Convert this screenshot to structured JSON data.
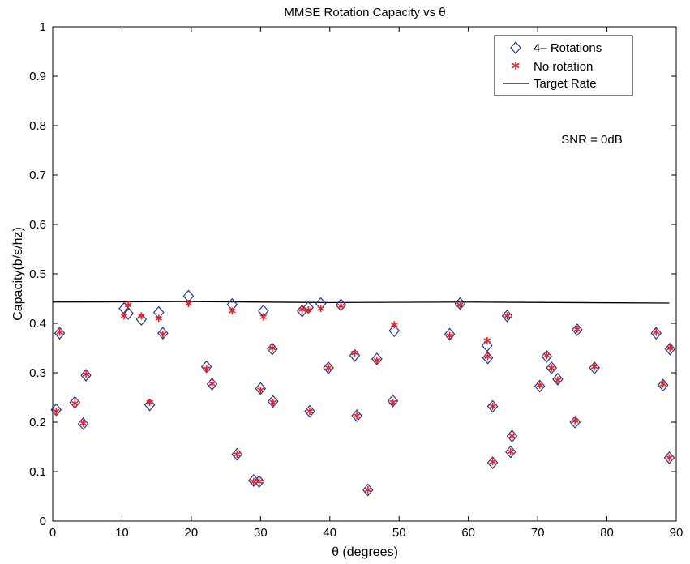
{
  "chart_data": {
    "type": "scatter",
    "title": "MMSE Rotation Capacity vs θ",
    "xlabel": "θ (degrees)",
    "ylabel": "Capacity(b/s/hz)",
    "xlim": [
      0,
      90
    ],
    "ylim": [
      0,
      1
    ],
    "xticks": [
      0,
      10,
      20,
      30,
      40,
      50,
      60,
      70,
      80,
      90
    ],
    "yticks": [
      0,
      0.1,
      0.2,
      0.3,
      0.4,
      0.5,
      0.6,
      0.7,
      0.8,
      0.9,
      1
    ],
    "ytick_labels": [
      "0",
      "0.1",
      "0.2",
      "0.3",
      "0.4",
      "0.5",
      "0.6",
      "0.7",
      "0.8",
      "0.9",
      "1"
    ],
    "grid": false,
    "legend_position": "top-right",
    "annotation": "SNR = 0dB",
    "series": [
      {
        "name": "4– Rotations",
        "marker": "diamond",
        "color": "#2233aa",
        "points": [
          [
            0.5,
            0.225
          ],
          [
            1.0,
            0.38
          ],
          [
            3.2,
            0.24
          ],
          [
            4.4,
            0.197
          ],
          [
            4.8,
            0.295
          ],
          [
            10.3,
            0.43
          ],
          [
            10.9,
            0.42
          ],
          [
            12.8,
            0.408
          ],
          [
            14.0,
            0.235
          ],
          [
            15.3,
            0.422
          ],
          [
            15.9,
            0.38
          ],
          [
            19.6,
            0.455
          ],
          [
            22.2,
            0.312
          ],
          [
            23.0,
            0.277
          ],
          [
            25.9,
            0.438
          ],
          [
            26.6,
            0.135
          ],
          [
            29.0,
            0.082
          ],
          [
            29.8,
            0.08
          ],
          [
            30.0,
            0.268
          ],
          [
            30.4,
            0.425
          ],
          [
            31.7,
            0.348
          ],
          [
            31.8,
            0.242
          ],
          [
            36.0,
            0.425
          ],
          [
            36.9,
            0.432
          ],
          [
            37.1,
            0.222
          ],
          [
            38.7,
            0.44
          ],
          [
            39.8,
            0.31
          ],
          [
            41.6,
            0.437
          ],
          [
            43.6,
            0.335
          ],
          [
            43.9,
            0.213
          ],
          [
            45.5,
            0.063
          ],
          [
            46.8,
            0.328
          ],
          [
            49.1,
            0.243
          ],
          [
            49.3,
            0.385
          ],
          [
            57.3,
            0.378
          ],
          [
            58.8,
            0.44
          ],
          [
            62.7,
            0.355
          ],
          [
            62.8,
            0.33
          ],
          [
            63.5,
            0.232
          ],
          [
            63.5,
            0.118
          ],
          [
            65.6,
            0.415
          ],
          [
            66.1,
            0.14
          ],
          [
            66.3,
            0.172
          ],
          [
            70.3,
            0.273
          ],
          [
            71.3,
            0.333
          ],
          [
            72.0,
            0.31
          ],
          [
            72.9,
            0.287
          ],
          [
            75.4,
            0.2
          ],
          [
            75.7,
            0.387
          ],
          [
            78.2,
            0.31
          ],
          [
            87.1,
            0.38
          ],
          [
            88.1,
            0.275
          ],
          [
            89.1,
            0.348
          ],
          [
            89.0,
            0.128
          ]
        ]
      },
      {
        "name": "No rotation",
        "marker": "asterisk",
        "color": "#ee2222",
        "points": [
          [
            0.5,
            0.222
          ],
          [
            1.0,
            0.382
          ],
          [
            3.2,
            0.238
          ],
          [
            4.4,
            0.198
          ],
          [
            4.8,
            0.297
          ],
          [
            10.3,
            0.415
          ],
          [
            10.9,
            0.437
          ],
          [
            12.8,
            0.415
          ],
          [
            14.0,
            0.24
          ],
          [
            15.3,
            0.41
          ],
          [
            15.9,
            0.378
          ],
          [
            19.6,
            0.44
          ],
          [
            22.2,
            0.308
          ],
          [
            23.0,
            0.278
          ],
          [
            25.9,
            0.425
          ],
          [
            26.6,
            0.135
          ],
          [
            29.0,
            0.08
          ],
          [
            29.8,
            0.08
          ],
          [
            30.0,
            0.265
          ],
          [
            30.4,
            0.413
          ],
          [
            31.7,
            0.35
          ],
          [
            31.8,
            0.24
          ],
          [
            36.0,
            0.428
          ],
          [
            36.9,
            0.427
          ],
          [
            37.1,
            0.222
          ],
          [
            38.7,
            0.43
          ],
          [
            39.8,
            0.31
          ],
          [
            41.6,
            0.435
          ],
          [
            43.6,
            0.34
          ],
          [
            43.9,
            0.213
          ],
          [
            45.5,
            0.063
          ],
          [
            46.8,
            0.325
          ],
          [
            49.1,
            0.24
          ],
          [
            49.3,
            0.397
          ],
          [
            57.3,
            0.375
          ],
          [
            58.8,
            0.437
          ],
          [
            62.7,
            0.365
          ],
          [
            62.8,
            0.333
          ],
          [
            63.5,
            0.232
          ],
          [
            63.5,
            0.12
          ],
          [
            65.6,
            0.415
          ],
          [
            66.1,
            0.14
          ],
          [
            66.3,
            0.172
          ],
          [
            70.3,
            0.275
          ],
          [
            71.3,
            0.335
          ],
          [
            72.0,
            0.31
          ],
          [
            72.9,
            0.285
          ],
          [
            75.4,
            0.203
          ],
          [
            75.7,
            0.388
          ],
          [
            78.2,
            0.312
          ],
          [
            87.1,
            0.382
          ],
          [
            88.1,
            0.277
          ],
          [
            89.1,
            0.35
          ],
          [
            89.0,
            0.128
          ]
        ]
      },
      {
        "name": "Target Rate",
        "marker": "line",
        "color": "#000000",
        "points": [
          [
            0,
            0.443
          ],
          [
            20,
            0.444
          ],
          [
            40,
            0.442
          ],
          [
            60,
            0.443
          ],
          [
            89,
            0.441
          ]
        ]
      }
    ]
  }
}
